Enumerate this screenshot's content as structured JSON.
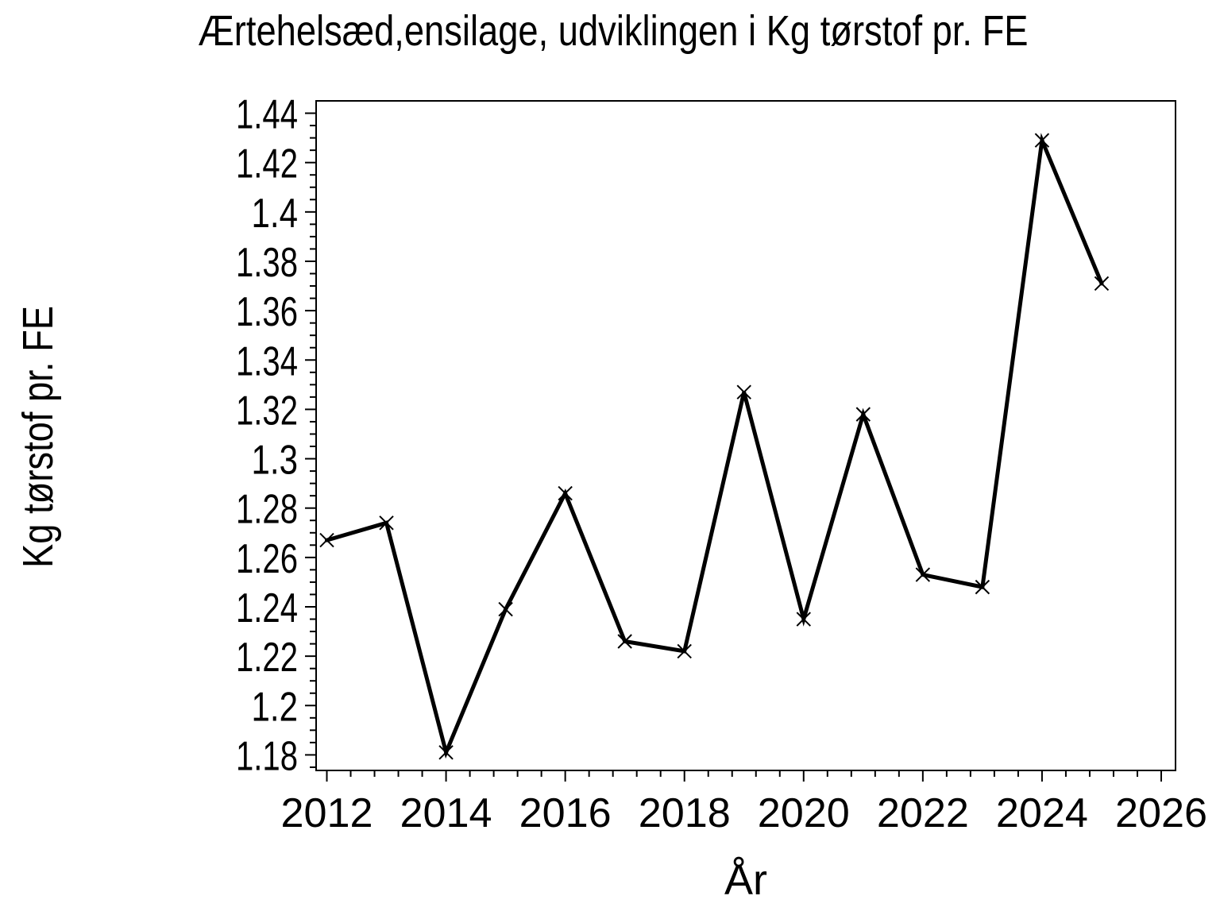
{
  "page": {
    "background": "#ffffff",
    "foreground": "#000000"
  },
  "chart_data": {
    "type": "line",
    "title": "Ærtehelsæd,ensilage,  udviklingen i Kg tørstof pr. FE",
    "xlabel": "År",
    "ylabel": "Kg tørstof pr. FE",
    "x": [
      2012,
      2013,
      2014,
      2015,
      2016,
      2017,
      2018,
      2019,
      2020,
      2021,
      2022,
      2023,
      2024,
      2025
    ],
    "y": [
      1.267,
      1.274,
      1.181,
      1.239,
      1.286,
      1.226,
      1.222,
      1.327,
      1.235,
      1.318,
      1.253,
      1.248,
      1.429,
      1.371
    ],
    "marker": "x",
    "line_color": "#000000",
    "background": "#ffffff",
    "grid": false,
    "legend": false,
    "xlim": [
      2011.82,
      2026.24
    ],
    "ylim": [
      1.1737,
      1.445
    ],
    "xticks": [
      2012,
      2014,
      2016,
      2018,
      2020,
      2022,
      2024,
      2026
    ],
    "x_minor_step": 0.4,
    "yticks": [
      1.18,
      1.2,
      1.22,
      1.24,
      1.26,
      1.28,
      1.3,
      1.32,
      1.34,
      1.36,
      1.38,
      1.4,
      1.42,
      1.44
    ],
    "y_minor_step": 0.005
  }
}
